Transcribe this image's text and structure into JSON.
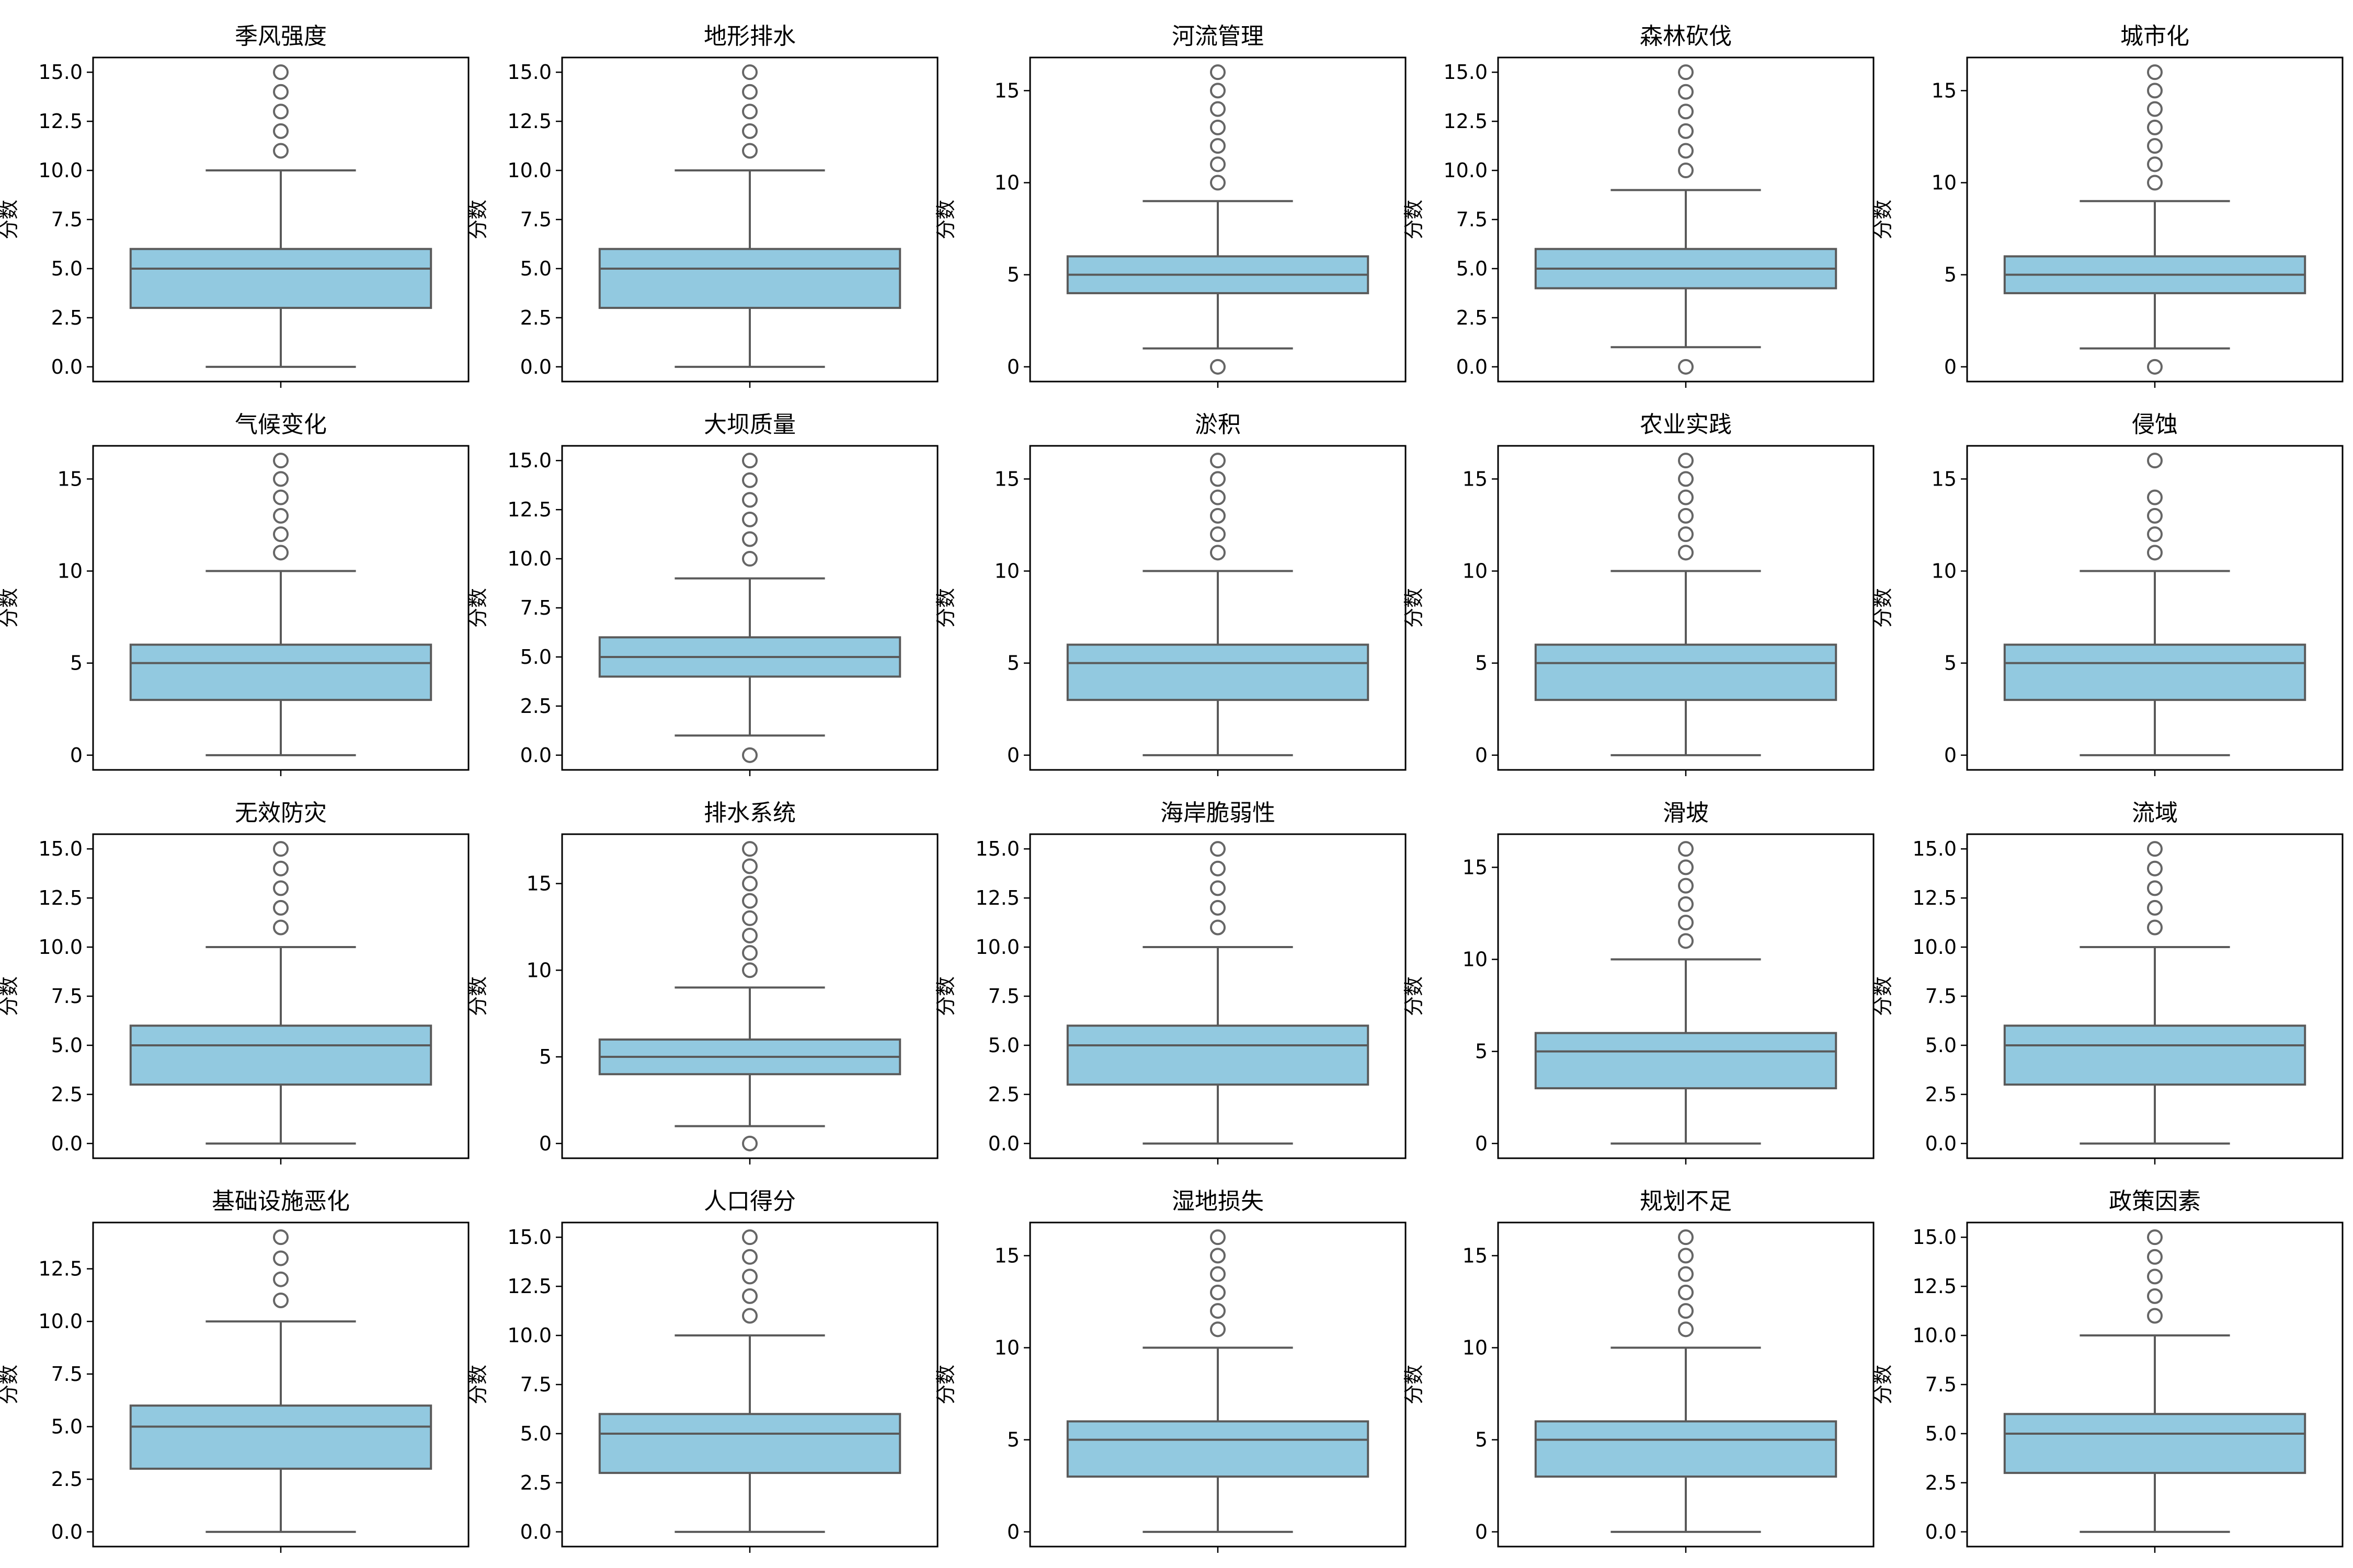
{
  "colors": {
    "box_fill": "#92c9e0",
    "line": "#5a5a5a",
    "axis": "#000000",
    "outlier_edge": "#666666"
  },
  "chart_data": [
    {
      "type": "box",
      "title": "季风强度",
      "ylabel": "分数",
      "ylim": [
        -0.75,
        15.75
      ],
      "yticks": [
        0,
        2.5,
        5,
        7.5,
        10,
        12.5,
        15
      ],
      "q1": 3,
      "median": 5,
      "q3": 6,
      "whisker_low": 0,
      "whisker_high": 10,
      "outliers": [
        11,
        12,
        13,
        14,
        15
      ]
    },
    {
      "type": "box",
      "title": "地形排水",
      "ylabel": "分数",
      "ylim": [
        -0.75,
        15.75
      ],
      "yticks": [
        0,
        2.5,
        5,
        7.5,
        10,
        12.5,
        15
      ],
      "q1": 3,
      "median": 5,
      "q3": 6,
      "whisker_low": 0,
      "whisker_high": 10,
      "outliers": [
        11,
        12,
        13,
        14,
        15
      ]
    },
    {
      "type": "box",
      "title": "河流管理",
      "ylabel": "分数",
      "ylim": [
        -0.8,
        16.8
      ],
      "yticks": [
        0,
        5,
        10,
        15
      ],
      "q1": 4,
      "median": 5,
      "q3": 6,
      "whisker_low": 1,
      "whisker_high": 9,
      "outliers": [
        0,
        10,
        11,
        12,
        13,
        14,
        15,
        16
      ]
    },
    {
      "type": "box",
      "title": "森林砍伐",
      "ylabel": "分数",
      "ylim": [
        -0.75,
        15.75
      ],
      "yticks": [
        0,
        2.5,
        5,
        7.5,
        10,
        12.5,
        15
      ],
      "q1": 4,
      "median": 5,
      "q3": 6,
      "whisker_low": 1,
      "whisker_high": 9,
      "outliers": [
        0,
        10,
        11,
        12,
        13,
        14,
        15
      ]
    },
    {
      "type": "box",
      "title": "城市化",
      "ylabel": "分数",
      "ylim": [
        -0.8,
        16.8
      ],
      "yticks": [
        0,
        5,
        10,
        15
      ],
      "q1": 4,
      "median": 5,
      "q3": 6,
      "whisker_low": 1,
      "whisker_high": 9,
      "outliers": [
        0,
        10,
        11,
        12,
        13,
        14,
        15,
        16
      ]
    },
    {
      "type": "box",
      "title": "气候变化",
      "ylabel": "分数",
      "ylim": [
        -0.8,
        16.8
      ],
      "yticks": [
        0,
        5,
        10,
        15
      ],
      "q1": 3,
      "median": 5,
      "q3": 6,
      "whisker_low": 0,
      "whisker_high": 10,
      "outliers": [
        11,
        12,
        13,
        14,
        15,
        16
      ]
    },
    {
      "type": "box",
      "title": "大坝质量",
      "ylabel": "分数",
      "ylim": [
        -0.75,
        15.75
      ],
      "yticks": [
        0,
        2.5,
        5,
        7.5,
        10,
        12.5,
        15
      ],
      "q1": 4,
      "median": 5,
      "q3": 6,
      "whisker_low": 1,
      "whisker_high": 9,
      "outliers": [
        0,
        10,
        11,
        12,
        13,
        14,
        15
      ]
    },
    {
      "type": "box",
      "title": "淤积",
      "ylabel": "分数",
      "ylim": [
        -0.8,
        16.8
      ],
      "yticks": [
        0,
        5,
        10,
        15
      ],
      "q1": 3,
      "median": 5,
      "q3": 6,
      "whisker_low": 0,
      "whisker_high": 10,
      "outliers": [
        11,
        12,
        13,
        14,
        15,
        16
      ]
    },
    {
      "type": "box",
      "title": "农业实践",
      "ylabel": "分数",
      "ylim": [
        -0.8,
        16.8
      ],
      "yticks": [
        0,
        5,
        10,
        15
      ],
      "q1": 3,
      "median": 5,
      "q3": 6,
      "whisker_low": 0,
      "whisker_high": 10,
      "outliers": [
        11,
        12,
        13,
        14,
        15,
        16
      ]
    },
    {
      "type": "box",
      "title": "侵蚀",
      "ylabel": "分数",
      "ylim": [
        -0.8,
        16.8
      ],
      "yticks": [
        0,
        5,
        10,
        15
      ],
      "q1": 3,
      "median": 5,
      "q3": 6,
      "whisker_low": 0,
      "whisker_high": 10,
      "outliers": [
        11,
        12,
        13,
        14,
        16
      ]
    },
    {
      "type": "box",
      "title": "无效防灾",
      "ylabel": "分数",
      "ylim": [
        -0.75,
        15.75
      ],
      "yticks": [
        0,
        2.5,
        5,
        7.5,
        10,
        12.5,
        15
      ],
      "q1": 3,
      "median": 5,
      "q3": 6,
      "whisker_low": 0,
      "whisker_high": 10,
      "outliers": [
        11,
        12,
        13,
        14,
        15
      ]
    },
    {
      "type": "box",
      "title": "排水系统",
      "ylabel": "分数",
      "ylim": [
        -0.85,
        17.85
      ],
      "yticks": [
        0,
        5,
        10,
        15
      ],
      "q1": 4,
      "median": 5,
      "q3": 6,
      "whisker_low": 1,
      "whisker_high": 9,
      "outliers": [
        0,
        10,
        11,
        12,
        13,
        14,
        15,
        16,
        17
      ]
    },
    {
      "type": "box",
      "title": "海岸脆弱性",
      "ylabel": "分数",
      "ylim": [
        -0.75,
        15.75
      ],
      "yticks": [
        0,
        2.5,
        5,
        7.5,
        10,
        12.5,
        15
      ],
      "q1": 3,
      "median": 5,
      "q3": 6,
      "whisker_low": 0,
      "whisker_high": 10,
      "outliers": [
        11,
        12,
        13,
        14,
        15
      ]
    },
    {
      "type": "box",
      "title": "滑坡",
      "ylabel": "分数",
      "ylim": [
        -0.8,
        16.8
      ],
      "yticks": [
        0,
        5,
        10,
        15
      ],
      "q1": 3,
      "median": 5,
      "q3": 6,
      "whisker_low": 0,
      "whisker_high": 10,
      "outliers": [
        11,
        12,
        13,
        14,
        15,
        16
      ]
    },
    {
      "type": "box",
      "title": "流域",
      "ylabel": "分数",
      "ylim": [
        -0.75,
        15.75
      ],
      "yticks": [
        0,
        2.5,
        5,
        7.5,
        10,
        12.5,
        15
      ],
      "q1": 3,
      "median": 5,
      "q3": 6,
      "whisker_low": 0,
      "whisker_high": 10,
      "outliers": [
        11,
        12,
        13,
        14,
        15
      ]
    },
    {
      "type": "box",
      "title": "基础设施恶化",
      "ylabel": "分数",
      "ylim": [
        -0.7,
        14.7
      ],
      "yticks": [
        0,
        2.5,
        5,
        7.5,
        10,
        12.5
      ],
      "q1": 3,
      "median": 5,
      "q3": 6,
      "whisker_low": 0,
      "whisker_high": 10,
      "outliers": [
        11,
        12,
        13,
        14
      ]
    },
    {
      "type": "box",
      "title": "人口得分",
      "ylabel": "分数",
      "ylim": [
        -0.75,
        15.75
      ],
      "yticks": [
        0,
        2.5,
        5,
        7.5,
        10,
        12.5,
        15
      ],
      "q1": 3,
      "median": 5,
      "q3": 6,
      "whisker_low": 0,
      "whisker_high": 10,
      "outliers": [
        11,
        12,
        13,
        14,
        15
      ]
    },
    {
      "type": "box",
      "title": "湿地损失",
      "ylabel": "分数",
      "ylim": [
        -0.8,
        16.8
      ],
      "yticks": [
        0,
        5,
        10,
        15
      ],
      "q1": 3,
      "median": 5,
      "q3": 6,
      "whisker_low": 0,
      "whisker_high": 10,
      "outliers": [
        11,
        12,
        13,
        14,
        15,
        16
      ]
    },
    {
      "type": "box",
      "title": "规划不足",
      "ylabel": "分数",
      "ylim": [
        -0.8,
        16.8
      ],
      "yticks": [
        0,
        5,
        10,
        15
      ],
      "q1": 3,
      "median": 5,
      "q3": 6,
      "whisker_low": 0,
      "whisker_high": 10,
      "outliers": [
        11,
        12,
        13,
        14,
        15,
        16
      ]
    },
    {
      "type": "box",
      "title": "政策因素",
      "ylabel": "分数",
      "ylim": [
        -0.75,
        15.75
      ],
      "yticks": [
        0,
        2.5,
        5,
        7.5,
        10,
        12.5,
        15
      ],
      "q1": 3,
      "median": 5,
      "q3": 6,
      "whisker_low": 0,
      "whisker_high": 10,
      "outliers": [
        11,
        12,
        13,
        14,
        15
      ]
    }
  ]
}
